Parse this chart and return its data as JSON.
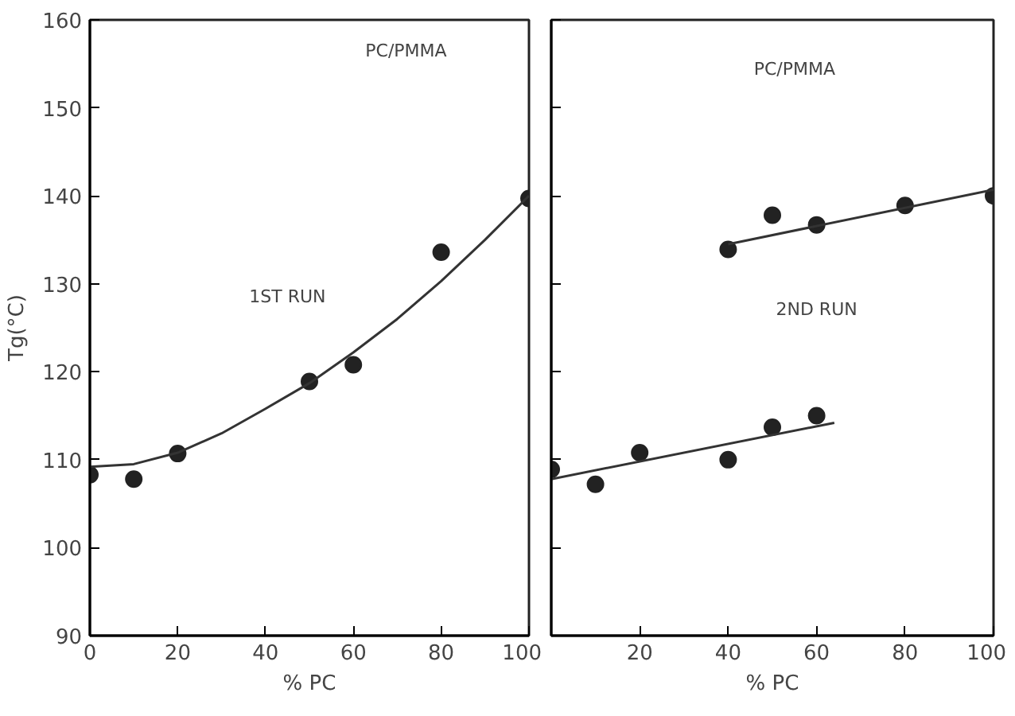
{
  "chart_data": [
    {
      "type": "scatter",
      "xlabel": "% PC",
      "ylabel": "Tg(°C)",
      "xlim": [
        0,
        100
      ],
      "ylim": [
        90,
        160
      ],
      "xticks": [
        0,
        20,
        40,
        60,
        80,
        100
      ],
      "yticks": [
        90,
        100,
        110,
        120,
        130,
        140,
        150,
        160
      ],
      "annotations": [
        "PC/PMMA",
        "1ST RUN"
      ],
      "series": [
        {
          "marker": "circle",
          "color": "#222222",
          "x": [
            0,
            10,
            20,
            50,
            60,
            80,
            100
          ],
          "values": [
            108.3,
            107.8,
            110.7,
            118.9,
            120.8,
            133.6,
            139.7
          ]
        },
        {
          "type": "line",
          "marker": "none",
          "color": "#333333",
          "x": [
            0,
            10,
            20,
            30,
            40,
            50,
            60,
            70,
            80,
            90,
            100
          ],
          "values": [
            109.2,
            109.5,
            110.8,
            113,
            115.8,
            118.7,
            122.2,
            126,
            130.3,
            135,
            140
          ]
        }
      ]
    },
    {
      "type": "scatter",
      "xlabel": "% PC",
      "xlim": [
        0,
        100
      ],
      "ylim": [
        90,
        160
      ],
      "xticks": [
        {
          "value": 0,
          "label": null
        },
        20,
        40,
        60,
        80,
        100
      ],
      "yticks": [
        90,
        100,
        110,
        120,
        130,
        140,
        150,
        160
      ],
      "tick_labels": "x",
      "annotations": [
        "PC/PMMA",
        "2ND RUN"
      ],
      "series": [
        {
          "marker": "circle",
          "color": "#222222",
          "x": [
            0,
            10,
            20,
            40,
            50,
            60
          ],
          "values": [
            108.9,
            107.2,
            110.8,
            110.0,
            113.7,
            115.0
          ]
        },
        {
          "marker": "circle",
          "color": "#222222",
          "x": [
            40,
            50,
            60,
            80,
            100
          ],
          "values": [
            133.9,
            137.8,
            136.7,
            138.9,
            140.0
          ]
        },
        {
          "type": "line",
          "marker": "none",
          "color": "#333333",
          "x": [
            0,
            64
          ],
          "values": [
            107.8,
            114.2
          ]
        },
        {
          "type": "line",
          "marker": "none",
          "color": "#333333",
          "x": [
            40,
            100
          ],
          "values": [
            134.5,
            140.7
          ]
        }
      ]
    }
  ]
}
